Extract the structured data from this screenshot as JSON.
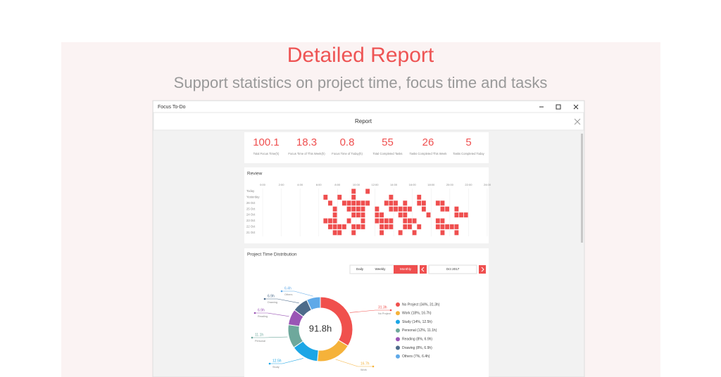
{
  "header": {
    "title": "Detailed Report",
    "subtitle": "Support statistics on project time, focus time and tasks"
  },
  "window": {
    "app_name": "Focus To-Do",
    "page_title": "Report"
  },
  "stats": [
    {
      "value": "100.1",
      "label": "Total Focus Time(h)"
    },
    {
      "value": "18.3",
      "label": "Focus Time of This Week(h)"
    },
    {
      "value": "0.8",
      "label": "Focus Time of Today(h)"
    },
    {
      "value": "55",
      "label": "Total Completed Tasks"
    },
    {
      "value": "26",
      "label": "Tasks Completed This Week"
    },
    {
      "value": "5",
      "label": "Tasks Completed Today"
    }
  ],
  "review": {
    "title": "Review",
    "hours": [
      "0:00",
      "2:00",
      "4:00",
      "6:00",
      "8:00",
      "10:00",
      "12:00",
      "14:00",
      "16:00",
      "18:00",
      "20:00",
      "22:00",
      "24:00"
    ],
    "days": [
      "Today",
      "Yesterday",
      "26 Oct",
      "25 Oct",
      "24 Oct",
      "23 Oct",
      "22 Oct",
      "21 Oct"
    ]
  },
  "distribution": {
    "title": "Project Time Distribution",
    "tabs": [
      "Daily",
      "Weekly",
      "Monthly"
    ],
    "period": "Oct 2017",
    "total": "91.8h",
    "items": [
      {
        "label": "No Project (34%, 31.3h)",
        "share": 34,
        "hours": "31.3h",
        "name": "No Project",
        "color": "#f0504d"
      },
      {
        "label": "Work (18%, 16.7h)",
        "share": 18,
        "hours": "16.7h",
        "name": "Work",
        "color": "#f5b23a"
      },
      {
        "label": "Study (14%, 12.5h)",
        "share": 14,
        "hours": "12.5h",
        "name": "Study",
        "color": "#1ba6e6"
      },
      {
        "label": "Personal (12%, 11.1h)",
        "share": 12,
        "hours": "11.1h",
        "name": "Personal",
        "color": "#6ea89c"
      },
      {
        "label": "Reading (8%, 6.9h)",
        "share": 8,
        "hours": "6.9h",
        "name": "Reading",
        "color": "#9a55b5"
      },
      {
        "label": "Drawing (8%, 6.9h)",
        "share": 8,
        "hours": "6.9h",
        "name": "Drawing",
        "color": "#4d6b8a"
      },
      {
        "label": "Others (7%, 6.4h)",
        "share": 7,
        "hours": "6.4h",
        "name": "Others",
        "color": "#5fa9e8"
      }
    ]
  }
}
